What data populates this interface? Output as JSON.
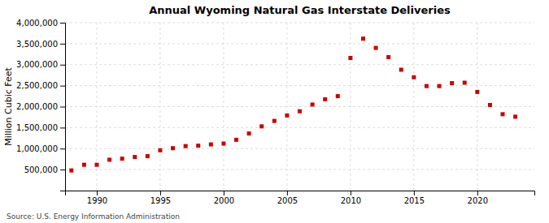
{
  "chart_data": {
    "type": "scatter",
    "title": "Annual Wyoming Natural Gas Interstate Deliveries",
    "ylabel": "Million Cubic Feet",
    "annotation": "Source: U.S. Energy Information Administration",
    "x": [
      1988,
      1989,
      1990,
      1991,
      1992,
      1993,
      1994,
      1995,
      1996,
      1997,
      1998,
      1999,
      2000,
      2001,
      2002,
      2003,
      2004,
      2005,
      2006,
      2007,
      2008,
      2009,
      2010,
      2011,
      2012,
      2013,
      2014,
      2015,
      2016,
      2017,
      2018,
      2019,
      2020,
      2021,
      2022,
      2023
    ],
    "values": [
      480000,
      615000,
      615000,
      735000,
      760000,
      800000,
      820000,
      960000,
      1010000,
      1060000,
      1070000,
      1100000,
      1120000,
      1210000,
      1360000,
      1530000,
      1660000,
      1790000,
      1890000,
      2050000,
      2175000,
      2250000,
      3160000,
      3620000,
      3400000,
      3180000,
      2880000,
      2700000,
      2490000,
      2490000,
      2560000,
      2570000,
      2350000,
      2040000,
      1820000,
      1760000
    ],
    "color": "#cc0000",
    "marker": "square",
    "xlim": [
      1987.5,
      2024.5
    ],
    "xticks": [
      1990,
      1995,
      2000,
      2005,
      2010,
      2015,
      2020
    ],
    "ylim": [
      0,
      4000000
    ],
    "yticks": [
      {
        "value": 500000,
        "label": "500,000"
      },
      {
        "value": 1000000,
        "label": "1,000,000"
      },
      {
        "value": 1500000,
        "label": "1,500,000"
      },
      {
        "value": 2000000,
        "label": "2,000,000"
      },
      {
        "value": 2500000,
        "label": "2,500,000"
      },
      {
        "value": 3000000,
        "label": "3,000,000"
      },
      {
        "value": 3500000,
        "label": "3,500,000"
      },
      {
        "value": 4000000,
        "label": "4,000,000"
      }
    ],
    "grid": true
  }
}
